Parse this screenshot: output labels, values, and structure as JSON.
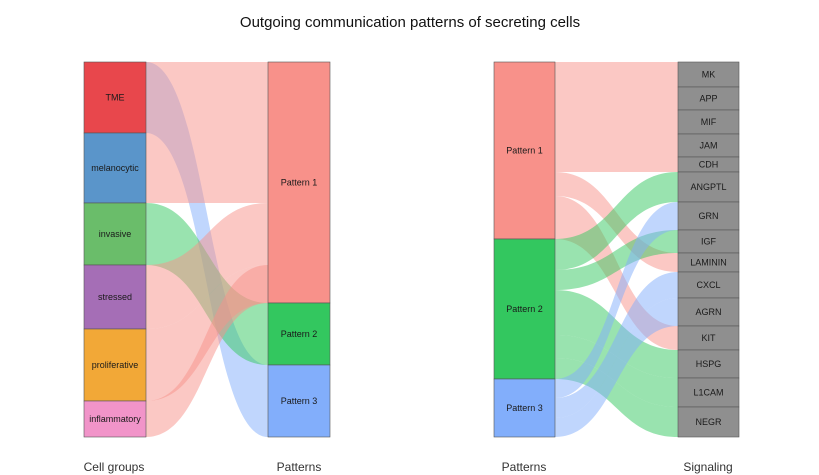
{
  "title": "Outgoing communication patterns of secreting cells",
  "left": {
    "axis_left": "Cell groups",
    "axis_right": "Patterns",
    "cell_groups": [
      {
        "label": "TME",
        "color": "#E8474C"
      },
      {
        "label": "melanocytic",
        "color": "#5A95CA"
      },
      {
        "label": "invasive",
        "color": "#6ABD6A"
      },
      {
        "label": "stressed",
        "color": "#A56EB6"
      },
      {
        "label": "proliferative",
        "color": "#F2A837"
      },
      {
        "label": "inflammatory",
        "color": "#F194C9"
      }
    ],
    "patterns": [
      {
        "label": "Pattern 1",
        "color": "#F8918A"
      },
      {
        "label": "Pattern 2",
        "color": "#33C75F"
      },
      {
        "label": "Pattern 3",
        "color": "#82AEFB"
      }
    ]
  },
  "right": {
    "axis_left": "Patterns",
    "axis_right": "Signaling",
    "patterns": [
      {
        "label": "Pattern 1",
        "color": "#F8918A"
      },
      {
        "label": "Pattern 2",
        "color": "#33C75F"
      },
      {
        "label": "Pattern 3",
        "color": "#82AEFB"
      }
    ],
    "signaling": [
      "MK",
      "APP",
      "MIF",
      "JAM",
      "CDH",
      "ANGPTL",
      "GRN",
      "IGF",
      "LAMININ",
      "CXCL",
      "AGRN",
      "KIT",
      "HSPG",
      "L1CAM",
      "NEGR"
    ],
    "signaling_color": "#8F8F8F"
  },
  "colors": {
    "pattern1_flow": "#F8918A",
    "pattern2_flow": "#33C75F",
    "pattern3_flow": "#82AEFB"
  }
}
